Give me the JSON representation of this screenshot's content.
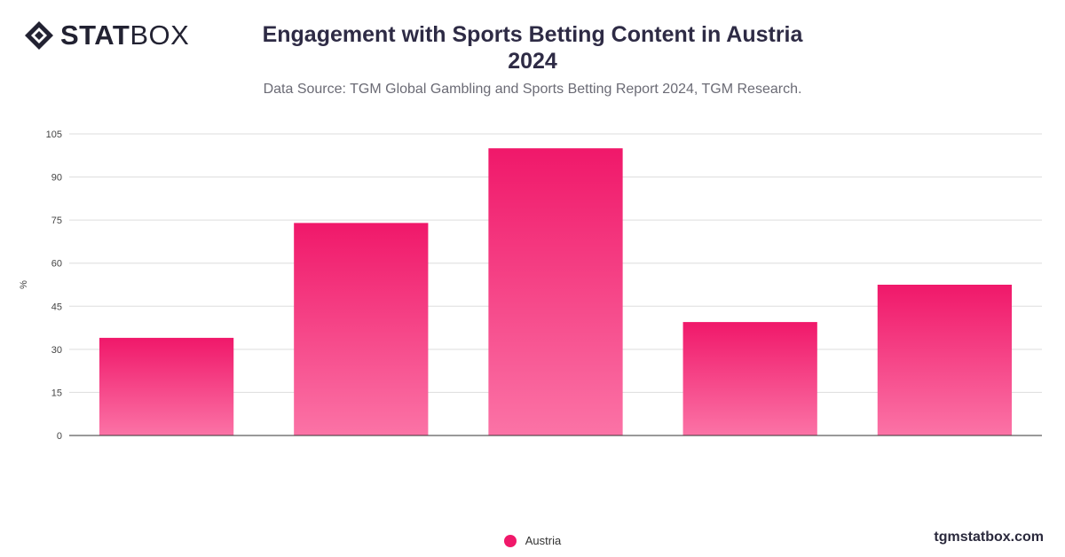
{
  "brand": {
    "logo_strong": "STAT",
    "logo_light": "BOX",
    "footer_url": "tgmstatbox.com"
  },
  "header": {
    "title_line1": "Engagement with Sports Betting Content in Austria",
    "title_line2": "2024",
    "subtitle": "Data Source: TGM Global Gambling and Sports Betting Report 2024, TGM Research."
  },
  "colors": {
    "bar_top": "#f0186a",
    "bar_bottom": "#fb73a6",
    "grid": "#dddddd",
    "axis": "#333333"
  },
  "chart_data": {
    "type": "bar",
    "categories": [
      "",
      "",
      "",
      "",
      ""
    ],
    "series": [
      {
        "name": "Austria",
        "values": [
          34,
          74,
          100,
          39.5,
          52.5
        ]
      }
    ],
    "title": "Engagement with Sports Betting Content in Austria 2024",
    "subtitle": "Data Source: TGM Global Gambling and Sports Betting Report 2024, TGM Research.",
    "xlabel": "",
    "ylabel": "%",
    "ylim": [
      0,
      105
    ],
    "yticks": [
      0,
      15,
      30,
      45,
      60,
      75,
      90,
      105
    ],
    "grid": true,
    "legend": "bottom-center"
  }
}
